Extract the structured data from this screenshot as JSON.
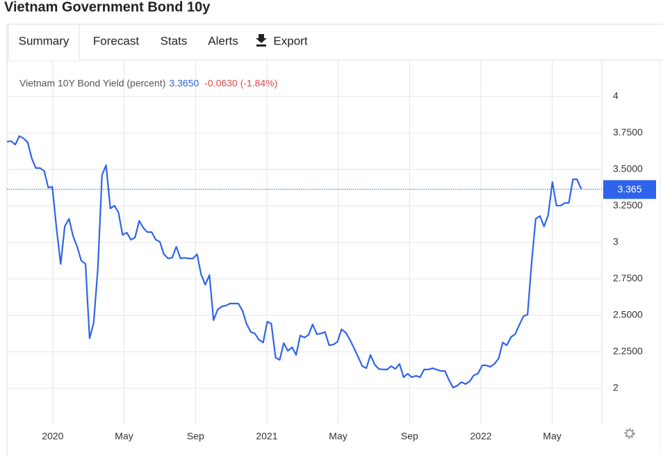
{
  "header": {
    "title": "Vietnam Government Bond 10y"
  },
  "tabs": [
    "Summary",
    "Forecast",
    "Stats",
    "Alerts",
    "Export"
  ],
  "legend": {
    "last_label": "3.3650",
    "change_label": "-0.0630 (-1.84%)"
  },
  "chart_data": {
    "type": "line",
    "series": [
      {
        "name": "Vietnam 10Y Bond Yield (percent)",
        "color": "#2f63eb",
        "values": [
          3.69,
          3.695,
          3.671,
          3.729,
          3.714,
          3.686,
          3.576,
          3.51,
          3.51,
          3.49,
          3.376,
          3.381,
          3.09,
          2.852,
          3.11,
          3.162,
          3.043,
          2.971,
          2.876,
          2.852,
          2.343,
          2.448,
          2.829,
          3.462,
          3.529,
          3.233,
          3.252,
          3.205,
          3.052,
          3.067,
          3.019,
          3.033,
          3.148,
          3.1,
          3.071,
          3.071,
          3.019,
          3.005,
          2.919,
          2.89,
          2.895,
          2.971,
          2.89,
          2.895,
          2.89,
          2.89,
          2.919,
          2.781,
          2.71,
          2.776,
          2.467,
          2.538,
          2.562,
          2.567,
          2.581,
          2.581,
          2.581,
          2.533,
          2.443,
          2.386,
          2.376,
          2.333,
          2.314,
          2.457,
          2.443,
          2.21,
          2.195,
          2.31,
          2.257,
          2.281,
          2.229,
          2.362,
          2.348,
          2.367,
          2.438,
          2.371,
          2.376,
          2.386,
          2.295,
          2.3,
          2.319,
          2.405,
          2.381,
          2.333,
          2.276,
          2.214,
          2.152,
          2.138,
          2.229,
          2.162,
          2.133,
          2.129,
          2.129,
          2.152,
          2.133,
          2.167,
          2.076,
          2.1,
          2.076,
          2.086,
          2.076,
          2.129,
          2.129,
          2.138,
          2.129,
          2.119,
          2.119,
          2.057,
          2.005,
          2.019,
          2.043,
          2.029,
          2.048,
          2.09,
          2.1,
          2.157,
          2.157,
          2.148,
          2.167,
          2.205,
          2.314,
          2.295,
          2.352,
          2.371,
          2.433,
          2.495,
          2.505,
          2.862,
          3.162,
          3.181,
          3.11,
          3.186,
          3.414,
          3.252,
          3.252,
          3.271,
          3.271,
          3.433,
          3.433,
          3.365
        ]
      }
    ],
    "x": [
      2019.786,
      2019.805,
      2019.825,
      2019.844,
      2019.863,
      2019.883,
      2019.902,
      2019.921,
      2019.94,
      2019.96,
      2019.979,
      2019.998,
      2020.018,
      2020.037,
      2020.056,
      2020.076,
      2020.095,
      2020.114,
      2020.133,
      2020.153,
      2020.172,
      2020.191,
      2020.211,
      2020.23,
      2020.249,
      2020.269,
      2020.288,
      2020.307,
      2020.326,
      2020.346,
      2020.365,
      2020.384,
      2020.404,
      2020.423,
      2020.442,
      2020.462,
      2020.481,
      2020.5,
      2020.519,
      2020.539,
      2020.558,
      2020.577,
      2020.597,
      2020.616,
      2020.635,
      2020.655,
      2020.674,
      2020.693,
      2020.712,
      2020.732,
      2020.751,
      2020.77,
      2020.79,
      2020.809,
      2020.828,
      2020.848,
      2020.867,
      2020.886,
      2020.905,
      2020.925,
      2020.944,
      2020.963,
      2020.983,
      2021.002,
      2021.021,
      2021.041,
      2021.06,
      2021.079,
      2021.098,
      2021.118,
      2021.137,
      2021.156,
      2021.176,
      2021.195,
      2021.214,
      2021.234,
      2021.253,
      2021.272,
      2021.291,
      2021.311,
      2021.33,
      2021.349,
      2021.369,
      2021.388,
      2021.407,
      2021.427,
      2021.446,
      2021.465,
      2021.484,
      2021.504,
      2021.523,
      2021.542,
      2021.562,
      2021.581,
      2021.6,
      2021.62,
      2021.639,
      2021.658,
      2021.677,
      2021.697,
      2021.716,
      2021.735,
      2021.755,
      2021.774,
      2021.793,
      2021.813,
      2021.832,
      2021.851,
      2021.87,
      2021.89,
      2021.909,
      2021.928,
      2021.948,
      2021.967,
      2021.986,
      2022.006,
      2022.025,
      2022.044,
      2022.063,
      2022.083,
      2022.102,
      2022.121,
      2022.141,
      2022.16,
      2022.179,
      2022.199,
      2022.218,
      2022.237,
      2022.256,
      2022.276,
      2022.295,
      2022.314,
      2022.334,
      2022.353,
      2022.372,
      2022.392,
      2022.411,
      2022.43,
      2022.449,
      2022.469
    ],
    "xlim": [
      2019.786,
      2022.565
    ],
    "xticks": [
      2020,
      {
        "value": 2020.333,
        "label": "May"
      },
      {
        "value": 2020.667,
        "label": "Sep"
      },
      2021,
      {
        "value": 2021.333,
        "label": "May"
      },
      {
        "value": 2021.667,
        "label": "Sep"
      },
      2022,
      {
        "value": 2022.333,
        "label": "May"
      }
    ],
    "ylim": [
      1.75,
      4.25
    ],
    "yticks": [
      4,
      {
        "value": 3.75,
        "label": "3.7500"
      },
      {
        "value": 3.5,
        "label": "3.5000"
      },
      {
        "value": 3.25,
        "label": "3.2500"
      },
      3,
      {
        "value": 2.75,
        "label": "2.7500"
      },
      {
        "value": 2.5,
        "label": "2.5000"
      },
      {
        "value": 2.25,
        "label": "2.2500"
      },
      2
    ],
    "current": 3.365,
    "grid": true
  }
}
